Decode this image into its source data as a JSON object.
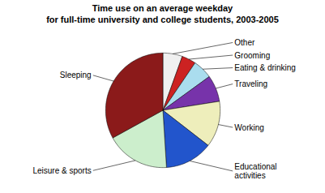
{
  "chart_data": {
    "type": "pie",
    "title": "Time use on an average weekday\nfor full-time university and college students, 2003-2005",
    "categories": [
      "Other",
      "Grooming",
      "Eating & drinking",
      "Traveling",
      "Working",
      "Educational\nactivities",
      "Leisure & sports",
      "Sleeping"
    ],
    "values": [
      5.5,
      4.0,
      5.5,
      7.5,
      13.0,
      13.5,
      18.0,
      33.0
    ],
    "colors": [
      "#f0f0f0",
      "#cc2222",
      "#aaddee",
      "#7733aa",
      "#eeeebb",
      "#2255cc",
      "#cceecc",
      "#8b1a1a"
    ]
  }
}
